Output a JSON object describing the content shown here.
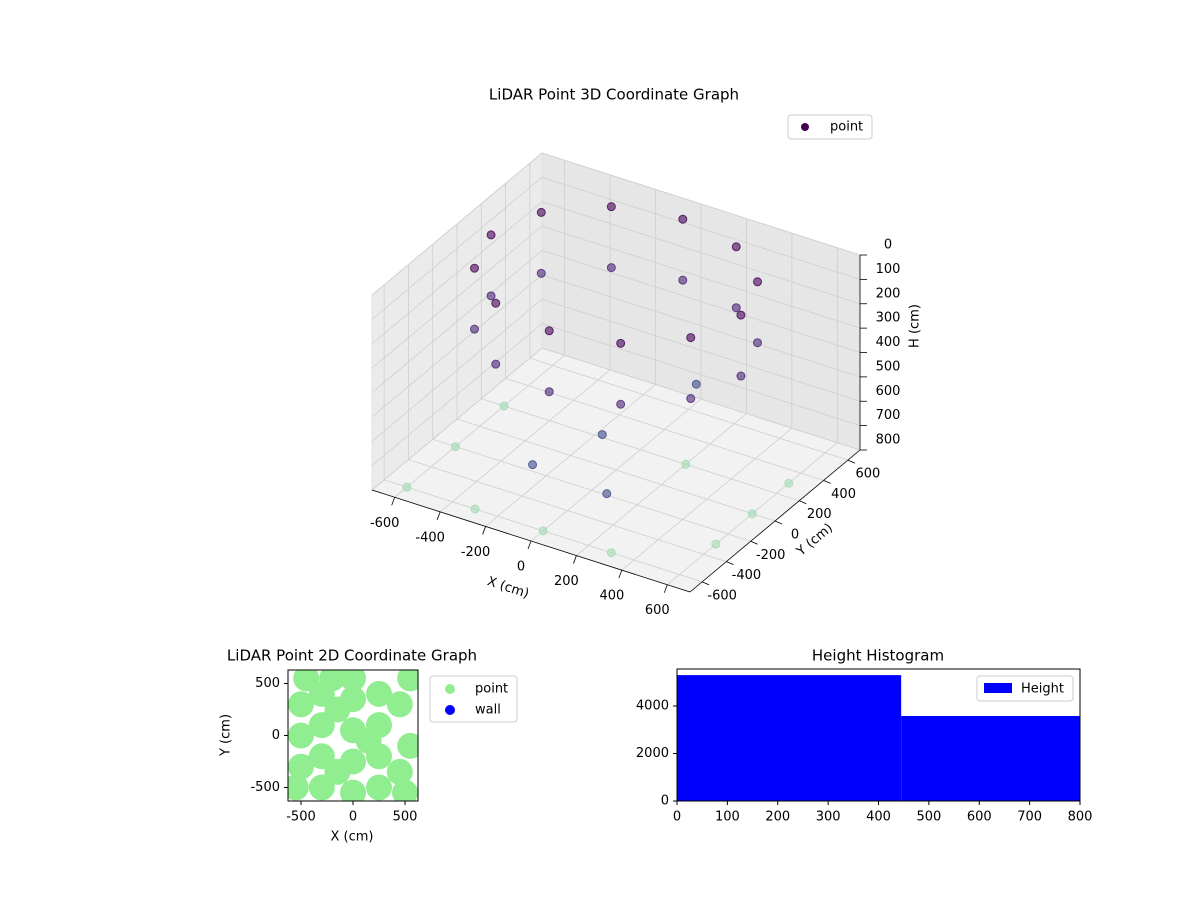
{
  "chart_data": [
    {
      "type": "scatter3d",
      "title": "LiDAR Point 3D Coordinate Graph",
      "x_label": "X (cm)",
      "y_label": "Y (cm)",
      "z_label": "H (cm)",
      "xlim": [
        -700,
        700
      ],
      "ylim": [
        -700,
        700
      ],
      "zlim": [
        0,
        800
      ],
      "z_inverted": true,
      "xticks": [
        -600,
        -400,
        -200,
        0,
        200,
        400,
        600
      ],
      "yticks": [
        -600,
        -400,
        -200,
        0,
        200,
        400,
        600
      ],
      "zticks": [
        0,
        100,
        200,
        300,
        400,
        500,
        600,
        700,
        800
      ],
      "grid": true,
      "legend": "upper right",
      "series": [
        {
          "name": "point",
          "color": "#440154",
          "x": [
            550,
            476,
            275,
            0,
            -275,
            -476,
            -550,
            -476,
            -275,
            0,
            275,
            476,
            550,
            476,
            275,
            0,
            -275,
            -476,
            -550,
            -476,
            -275,
            0,
            275,
            476,
            -600,
            -300,
            0,
            300,
            600,
            600,
            600,
            -600,
            -600,
            200,
            100,
            200,
            -100,
            300
          ],
          "y": [
            0,
            275,
            476,
            550,
            476,
            275,
            0,
            -275,
            -476,
            -550,
            -476,
            -275,
            0,
            275,
            476,
            550,
            476,
            275,
            0,
            -275,
            -476,
            -550,
            -476,
            -275,
            -600,
            -600,
            -600,
            -600,
            -300,
            0,
            300,
            -200,
            200,
            200,
            -300,
            -450,
            -500,
            100
          ],
          "z": [
            0,
            0,
            0,
            0,
            0,
            0,
            0,
            0,
            0,
            0,
            0,
            0,
            250,
            250,
            250,
            250,
            250,
            250,
            250,
            250,
            250,
            250,
            250,
            250,
            800,
            800,
            800,
            800,
            800,
            800,
            800,
            800,
            800,
            800,
            500,
            650,
            600,
            400
          ],
          "point_colors": [
            "#440154",
            "#440154",
            "#440154",
            "#440154",
            "#440154",
            "#440154",
            "#440154",
            "#440154",
            "#440154",
            "#440154",
            "#440154",
            "#440154",
            "#482475",
            "#482475",
            "#482475",
            "#482475",
            "#482475",
            "#482475",
            "#482475",
            "#482475",
            "#482475",
            "#482475",
            "#482475",
            "#482475",
            "#a0dab3",
            "#a0dab3",
            "#a0dab3",
            "#a0dab3",
            "#a0dab3",
            "#a0dab3",
            "#a0dab3",
            "#a0dab3",
            "#a0dab3",
            "#a0dab3",
            "#3e4a89",
            "#3e4a89",
            "#3e4a89",
            "#3e4a89"
          ]
        }
      ]
    },
    {
      "type": "scatter",
      "title": "LiDAR Point 2D Coordinate Graph",
      "x_label": "X (cm)",
      "y_label": "Y (cm)",
      "xlim": [
        -625,
        625
      ],
      "ylim": [
        -630,
        630
      ],
      "xticks": [
        -500,
        0,
        500
      ],
      "yticks": [
        -500,
        0,
        500
      ],
      "legend": "outside right",
      "series": [
        {
          "name": "point",
          "color": "#90ee90",
          "x": [
            -500,
            -500,
            -500,
            -300,
            -300,
            -300,
            -300,
            0,
            0,
            0,
            0,
            0,
            250,
            250,
            250,
            250,
            450,
            450,
            500,
            550,
            -200,
            -550,
            -450,
            150,
            -150,
            -150,
            550
          ],
          "y": [
            0,
            300,
            -300,
            -500,
            -200,
            100,
            400,
            -550,
            -250,
            50,
            350,
            550,
            -500,
            -200,
            100,
            400,
            -350,
            300,
            -550,
            550,
            550,
            -500,
            550,
            -50,
            -350,
            250,
            -100
          ]
        },
        {
          "name": "wall",
          "color": "#0000ff",
          "x": [],
          "y": []
        }
      ]
    },
    {
      "type": "histogram",
      "title": "Height Histogram",
      "bins": [
        0,
        445,
        800
      ],
      "values": [
        5300,
        3580
      ],
      "name": "Height",
      "color": "#0000ff",
      "xlim": [
        0,
        800
      ],
      "ylim": [
        0,
        5558
      ],
      "xticks": [
        0,
        100,
        200,
        300,
        400,
        500,
        600,
        700,
        800
      ],
      "yticks": [
        0,
        2000,
        4000
      ],
      "legend": "upper right"
    }
  ]
}
